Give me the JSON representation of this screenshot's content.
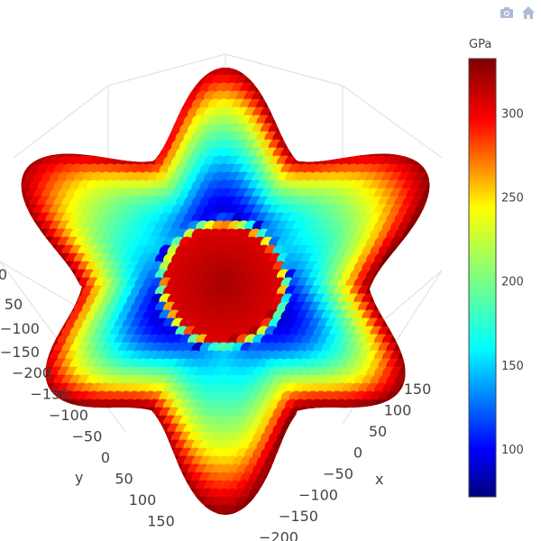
{
  "modebar": {
    "camera_icon": "camera-icon",
    "home_icon": "home-icon",
    "icon_color": "#aebbd3"
  },
  "chart_data": {
    "type": "scatter3d",
    "title": "",
    "description": "",
    "colorbar": {
      "title": "GPa",
      "range": [
        72,
        333
      ],
      "ticks": [
        100,
        150,
        200,
        250,
        300
      ],
      "colorscale": [
        [
          0.0,
          "#00007f"
        ],
        [
          0.11,
          "#0000ff"
        ],
        [
          0.34,
          "#00ffff"
        ],
        [
          0.5,
          "#7fff7f"
        ],
        [
          0.66,
          "#ffff00"
        ],
        [
          0.86,
          "#ff0000"
        ],
        [
          1.0,
          "#7f0000"
        ]
      ]
    },
    "axes": {
      "x": {
        "label": "x",
        "ticks": [
          -200,
          -150,
          -100,
          -50,
          0,
          50,
          100,
          150
        ]
      },
      "y": {
        "label": "y",
        "ticks": [
          -200,
          -150,
          -100,
          -50,
          0,
          50,
          100,
          150
        ]
      },
      "z": {
        "ticks": [
          0
        ]
      }
    },
    "shape": {
      "lobes": 6,
      "outer_value": 333,
      "min_value": 80,
      "inner_value": 320
    }
  }
}
